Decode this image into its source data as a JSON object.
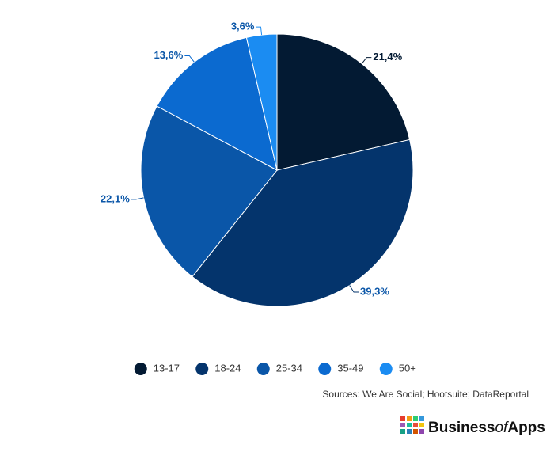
{
  "chart_data": {
    "type": "pie",
    "categories": [
      "13-17",
      "18-24",
      "25-34",
      "35-49",
      "50+"
    ],
    "values": [
      21.4,
      39.3,
      22.1,
      13.6,
      3.6
    ],
    "value_labels": [
      "21,4%",
      "39,3%",
      "22,1%",
      "13,6%",
      "3,6%"
    ],
    "colors": [
      "#031a33",
      "#04346c",
      "#0a56a8",
      "#0b6ad0",
      "#1b8cf2"
    ],
    "legend": "bottom"
  },
  "source": "Sources: We Are Social; Hootsuite; DataReportal",
  "logo": {
    "part1": "Business",
    "part2": "of",
    "part3": "Apps"
  }
}
